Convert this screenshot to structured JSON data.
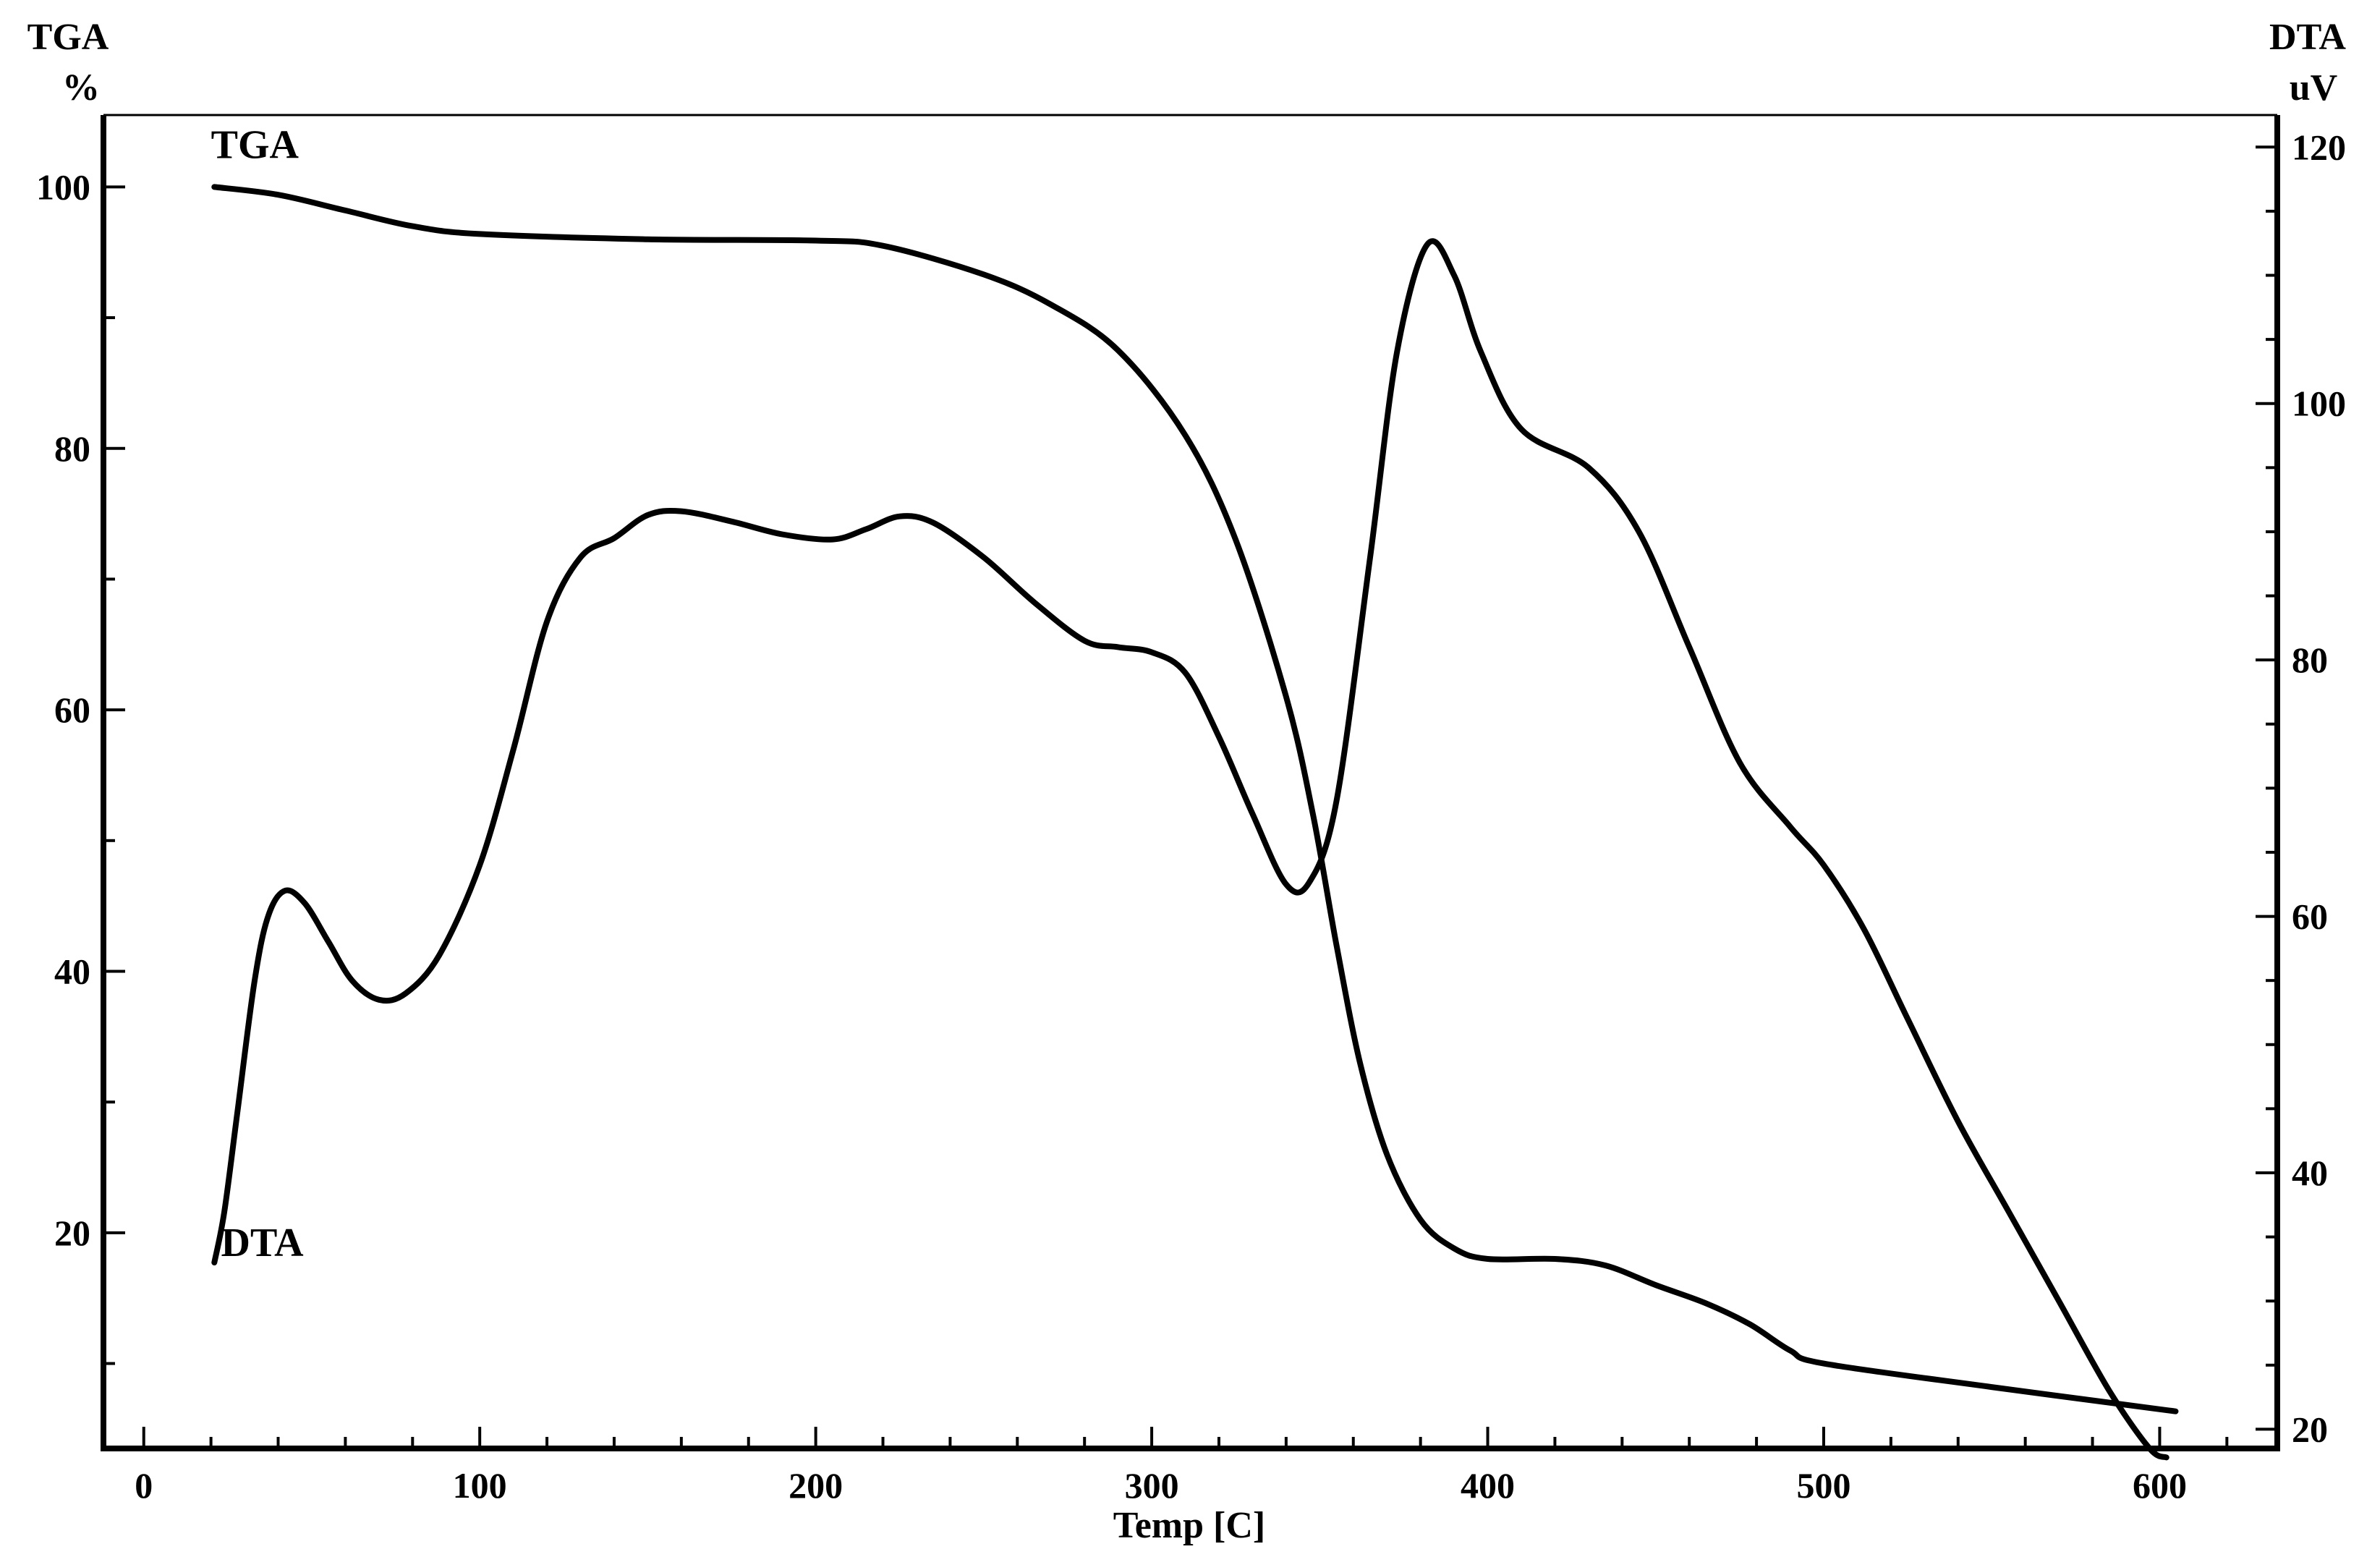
{
  "chart_data": {
    "type": "line",
    "xlabel": "Temp  [C]",
    "x_ticks": [
      0,
      100,
      200,
      300,
      400,
      500,
      600
    ],
    "xlim": [
      -12,
      635
    ],
    "left_axis": {
      "title_line1": "TGA",
      "title_line2": "%",
      "ticks": [
        20,
        40,
        60,
        80,
        100
      ],
      "ylim": [
        3.5,
        105.5
      ]
    },
    "right_axis": {
      "title_line1": "DTA",
      "title_line2": "uV",
      "ticks": [
        20,
        40,
        60,
        80,
        100,
        120
      ],
      "ylim": [
        18.5,
        122.5
      ]
    },
    "series": [
      {
        "name": "TGA",
        "axis": "left",
        "label_anchor": [
          20,
          102.2
        ],
        "points": [
          [
            21,
            100
          ],
          [
            40,
            99.4
          ],
          [
            60,
            98.2
          ],
          [
            80,
            97
          ],
          [
            100,
            96.4
          ],
          [
            150,
            96
          ],
          [
            200,
            95.9
          ],
          [
            220,
            95.5
          ],
          [
            250,
            93.3
          ],
          [
            270,
            91
          ],
          [
            290,
            87.5
          ],
          [
            310,
            81
          ],
          [
            325,
            73
          ],
          [
            340,
            61
          ],
          [
            348,
            52
          ],
          [
            355,
            42
          ],
          [
            362,
            33
          ],
          [
            370,
            26
          ],
          [
            380,
            21
          ],
          [
            390,
            18.8
          ],
          [
            400,
            18
          ],
          [
            420,
            18
          ],
          [
            435,
            17.5
          ],
          [
            450,
            16
          ],
          [
            465,
            14.6
          ],
          [
            478,
            13
          ],
          [
            490,
            11
          ],
          [
            500,
            10
          ],
          [
            550,
            8.2
          ],
          [
            600,
            6.5
          ],
          [
            603,
            6.4
          ]
        ]
      },
      {
        "name": "DTA",
        "axis": "right",
        "label_anchor": [
          23,
          33.5
        ],
        "points": [
          [
            21,
            33
          ],
          [
            24,
            37
          ],
          [
            28,
            45
          ],
          [
            33,
            55
          ],
          [
            37,
            60
          ],
          [
            42,
            62
          ],
          [
            48,
            61
          ],
          [
            55,
            58
          ],
          [
            62,
            55
          ],
          [
            70,
            53.5
          ],
          [
            78,
            54
          ],
          [
            88,
            57
          ],
          [
            100,
            64
          ],
          [
            110,
            73
          ],
          [
            120,
            83
          ],
          [
            130,
            88
          ],
          [
            140,
            89.5
          ],
          [
            150,
            91.3
          ],
          [
            160,
            91.6
          ],
          [
            175,
            90.8
          ],
          [
            190,
            89.8
          ],
          [
            205,
            89.4
          ],
          [
            215,
            90.2
          ],
          [
            225,
            91.2
          ],
          [
            235,
            90.7
          ],
          [
            250,
            88
          ],
          [
            265,
            84.5
          ],
          [
            280,
            81.5
          ],
          [
            290,
            81
          ],
          [
            300,
            80.6
          ],
          [
            310,
            79
          ],
          [
            320,
            74
          ],
          [
            330,
            68
          ],
          [
            340,
            62.5
          ],
          [
            347,
            62.7
          ],
          [
            355,
            69
          ],
          [
            365,
            88
          ],
          [
            373,
            104
          ],
          [
            382,
            112.4
          ],
          [
            390,
            110
          ],
          [
            398,
            104
          ],
          [
            410,
            98
          ],
          [
            430,
            95
          ],
          [
            445,
            90
          ],
          [
            460,
            81
          ],
          [
            475,
            72
          ],
          [
            490,
            67
          ],
          [
            500,
            64
          ],
          [
            512,
            59
          ],
          [
            525,
            52
          ],
          [
            540,
            44
          ],
          [
            555,
            37
          ],
          [
            570,
            30
          ],
          [
            585,
            23
          ],
          [
            597,
            18.5
          ],
          [
            602,
            17.8
          ]
        ]
      }
    ],
    "grid": false,
    "line_color": "#000000"
  }
}
